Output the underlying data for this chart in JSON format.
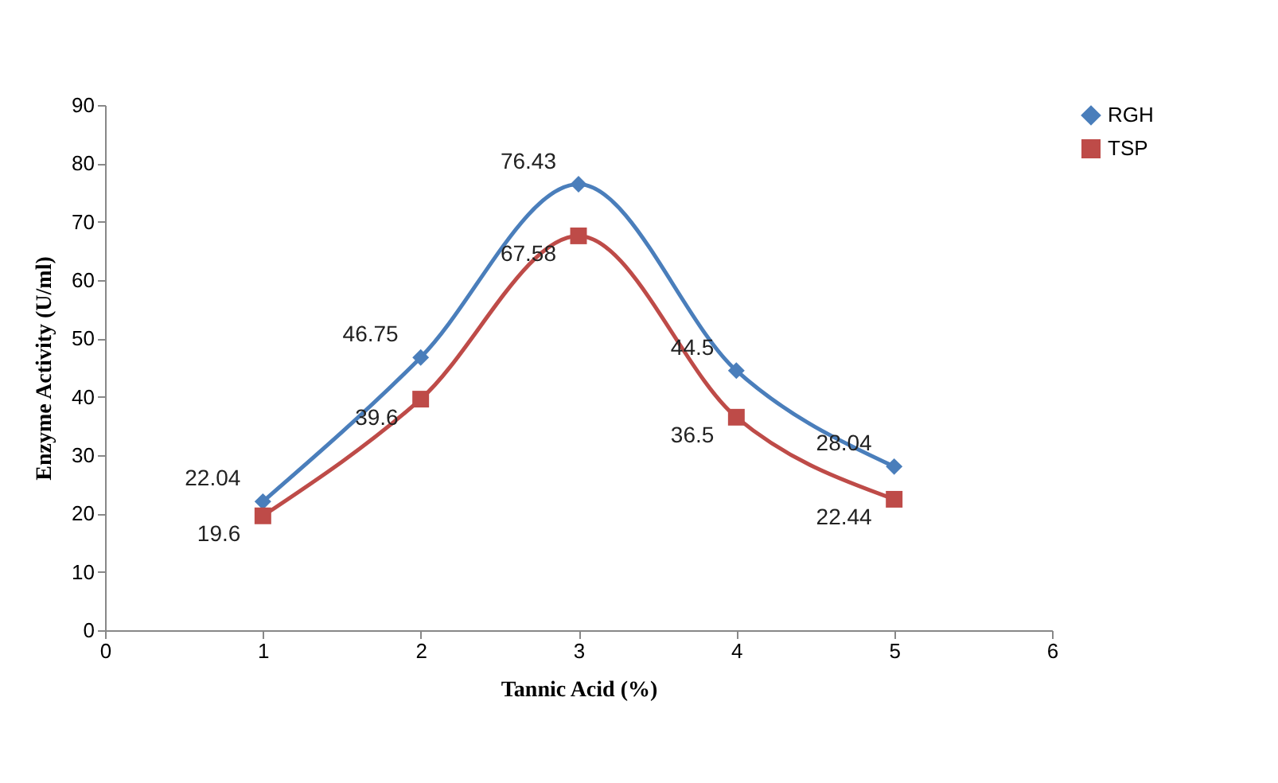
{
  "chart_data": {
    "type": "line",
    "xlabel": "Tannic Acid (%)",
    "ylabel": "Enzyme Activity (U/ml)",
    "x": [
      1,
      2,
      3,
      4,
      5
    ],
    "series": [
      {
        "name": "RGH",
        "color": "#4a7ebb",
        "marker": "diamond",
        "values": [
          22.04,
          46.75,
          76.43,
          44.5,
          28.04
        ]
      },
      {
        "name": "TSP",
        "color": "#be4b48",
        "marker": "square",
        "values": [
          19.6,
          39.6,
          67.58,
          36.5,
          22.44
        ]
      }
    ],
    "xlim": [
      0,
      6
    ],
    "xticks": [
      0,
      1,
      2,
      3,
      4,
      5,
      6
    ],
    "ylim": [
      0,
      90
    ],
    "yticks": [
      0,
      10,
      20,
      30,
      40,
      50,
      60,
      70,
      80,
      90
    ],
    "data_labels": true,
    "legend": "right",
    "grid": false
  }
}
